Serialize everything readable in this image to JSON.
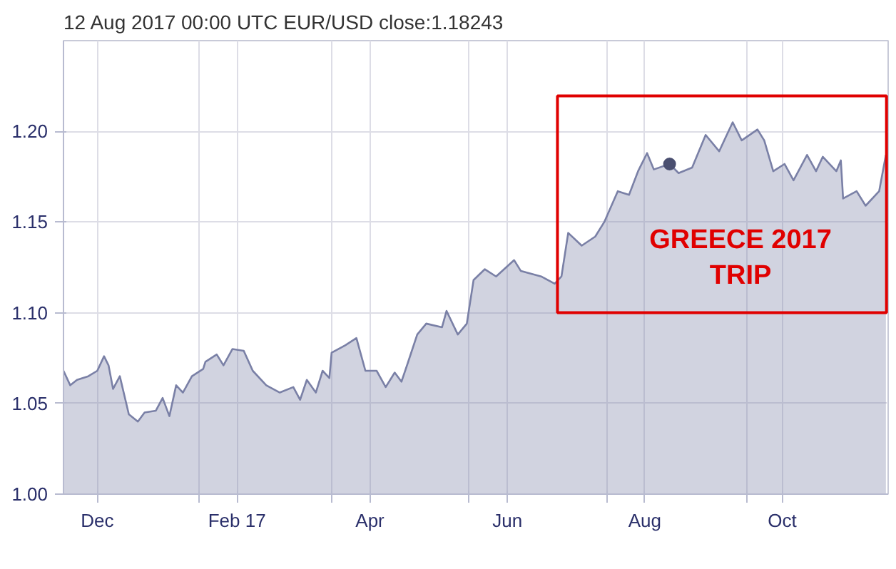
{
  "chart_data": {
    "type": "area",
    "title": "12 Aug 2017 00:00 UTC   EUR/USD close:1.18243",
    "xlim": [
      "2016-11-16",
      "2017-11-17"
    ],
    "ylim": [
      1.0,
      1.25
    ],
    "xticks": [
      {
        "value": "2016-12-01",
        "label": "Dec"
      },
      {
        "value": "2017-01-15",
        "label": null
      },
      {
        "value": "2017-02-01",
        "label": "Feb 17"
      },
      {
        "value": "2017-03-15",
        "label": null
      },
      {
        "value": "2017-04-01",
        "label": "Apr"
      },
      {
        "value": "2017-05-15",
        "label": null
      },
      {
        "value": "2017-06-01",
        "label": "Jun"
      },
      {
        "value": "2017-07-15",
        "label": null
      },
      {
        "value": "2017-08-01",
        "label": "Aug"
      },
      {
        "value": "2017-09-15",
        "label": null
      },
      {
        "value": "2017-10-01",
        "label": "Oct"
      }
    ],
    "yticks": [
      {
        "value": 1.0,
        "label": "1.00"
      },
      {
        "value": 1.05,
        "label": "1.05"
      },
      {
        "value": 1.1,
        "label": "1.10"
      },
      {
        "value": 1.15,
        "label": "1.15"
      },
      {
        "value": 1.2,
        "label": "1.20"
      }
    ],
    "grid": true,
    "series": [
      {
        "color": "#7a80a6",
        "x": [
          "2016-11-16",
          "2016-11-19",
          "2016-11-22",
          "2016-11-27",
          "2016-12-01",
          "2016-12-04",
          "2016-12-06",
          "2016-12-08",
          "2016-12-11",
          "2016-12-15",
          "2016-12-19",
          "2016-12-22",
          "2016-12-27",
          "2016-12-30",
          "2017-01-02",
          "2017-01-05",
          "2017-01-08",
          "2017-01-12",
          "2017-01-17",
          "2017-01-18",
          "2017-01-23",
          "2017-01-26",
          "2017-01-30",
          "2017-02-04",
          "2017-02-08",
          "2017-02-14",
          "2017-02-20",
          "2017-02-26",
          "2017-03-01",
          "2017-03-04",
          "2017-03-08",
          "2017-03-11",
          "2017-03-14",
          "2017-03-15",
          "2017-03-21",
          "2017-03-26",
          "2017-03-30",
          "2017-04-04",
          "2017-04-08",
          "2017-04-12",
          "2017-04-15",
          "2017-04-18",
          "2017-04-22",
          "2017-04-26",
          "2017-05-03",
          "2017-05-05",
          "2017-05-10",
          "2017-05-14",
          "2017-05-17",
          "2017-05-22",
          "2017-05-27",
          "2017-06-04",
          "2017-06-07",
          "2017-06-16",
          "2017-06-22",
          "2017-06-25",
          "2017-06-28",
          "2017-07-04",
          "2017-07-10",
          "2017-07-14",
          "2017-07-20",
          "2017-07-25",
          "2017-07-29",
          "2017-08-02",
          "2017-08-05",
          "2017-08-12",
          "2017-08-16",
          "2017-08-22",
          "2017-08-28",
          "2017-09-03",
          "2017-09-09",
          "2017-09-13",
          "2017-09-20",
          "2017-09-23",
          "2017-09-27",
          "2017-10-02",
          "2017-10-06",
          "2017-10-12",
          "2017-10-16",
          "2017-10-19",
          "2017-10-25",
          "2017-10-27",
          "2017-10-28",
          "2017-11-03",
          "2017-11-07",
          "2017-11-13",
          "2017-11-16"
        ],
        "values": [
          1.068,
          1.06,
          1.063,
          1.065,
          1.068,
          1.076,
          1.071,
          1.058,
          1.065,
          1.044,
          1.04,
          1.045,
          1.046,
          1.053,
          1.043,
          1.06,
          1.056,
          1.065,
          1.069,
          1.073,
          1.077,
          1.071,
          1.08,
          1.079,
          1.068,
          1.06,
          1.056,
          1.059,
          1.052,
          1.063,
          1.056,
          1.068,
          1.064,
          1.078,
          1.082,
          1.086,
          1.068,
          1.068,
          1.059,
          1.067,
          1.062,
          1.073,
          1.088,
          1.094,
          1.092,
          1.101,
          1.088,
          1.094,
          1.118,
          1.124,
          1.12,
          1.129,
          1.123,
          1.12,
          1.116,
          1.12,
          1.144,
          1.137,
          1.142,
          1.15,
          1.167,
          1.165,
          1.178,
          1.188,
          1.179,
          1.182,
          1.177,
          1.18,
          1.198,
          1.189,
          1.205,
          1.195,
          1.201,
          1.195,
          1.178,
          1.182,
          1.173,
          1.187,
          1.178,
          1.186,
          1.178,
          1.184,
          1.163,
          1.167,
          1.159,
          1.167,
          1.187
        ]
      },
      {
        "type": "scatter",
        "marker": "circle",
        "color": "#4a4f70",
        "x": [
          "2017-08-12"
        ],
        "values": [
          1.182
        ]
      }
    ],
    "annotations": [
      "GREECE 2017\nTRIP"
    ]
  }
}
